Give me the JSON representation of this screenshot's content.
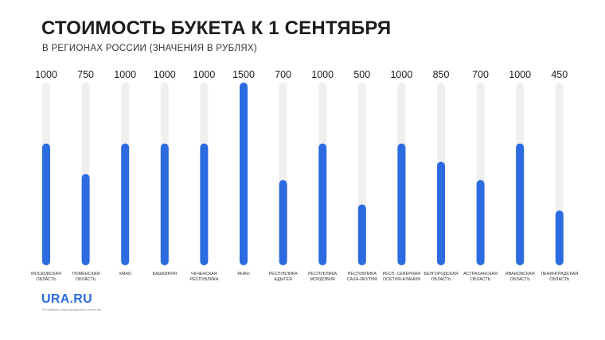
{
  "header": {
    "title": "СТОИМОСТЬ БУКЕТА К 1 СЕНТЯБРЯ",
    "subtitle": "В РЕГИОНАХ РОССИИ (ЗНАЧЕНИЯ В РУБЛЯХ)"
  },
  "brand": {
    "logo": "URA.RU",
    "tagline": "Российское информационное агентство"
  },
  "colors": {
    "bar": "#2c6be0",
    "track": "#efefef"
  },
  "chart_data": {
    "type": "bar",
    "orientation": "vertical",
    "grid": false,
    "ylim": [
      0,
      1500
    ],
    "categories": [
      [
        "МОСКОВСКАЯ",
        "ОБЛАСТЬ"
      ],
      [
        "ТЮМЕНСКАЯ",
        "ОБЛАСТЬ"
      ],
      [
        "ХМАО"
      ],
      [
        "БАШКИРИЯ"
      ],
      [
        "ЧЕЧЕНСКАЯ",
        "РЕСПУБЛИКА"
      ],
      [
        "ЯНАО"
      ],
      [
        "РЕСПУБЛИКА",
        "АДЫГЕЯ"
      ],
      [
        "РЕСПУБЛИКА",
        "МОРДОВИЯ"
      ],
      [
        "РЕСПУБЛИКА",
        "САХА-ЯКУТИЯ"
      ],
      [
        "РЕСП. СЕВЕРНАЯ",
        "ОСЕТИЯ-АЛАНИЯ"
      ],
      [
        "БЕЛГОРОДСКАЯ",
        "ОБЛАСТЬ"
      ],
      [
        "АСТРАХАНСКАЯ",
        "ОБЛАСТЬ"
      ],
      [
        "ИВАНОВСКАЯ",
        "ОБЛАСТЬ"
      ],
      [
        "ЛЕНИНГРАДСКАЯ",
        "ОБЛАСТЬ"
      ]
    ],
    "values": [
      1000,
      750,
      1000,
      1000,
      1000,
      1500,
      700,
      1000,
      500,
      1000,
      850,
      700,
      1000,
      450
    ]
  }
}
